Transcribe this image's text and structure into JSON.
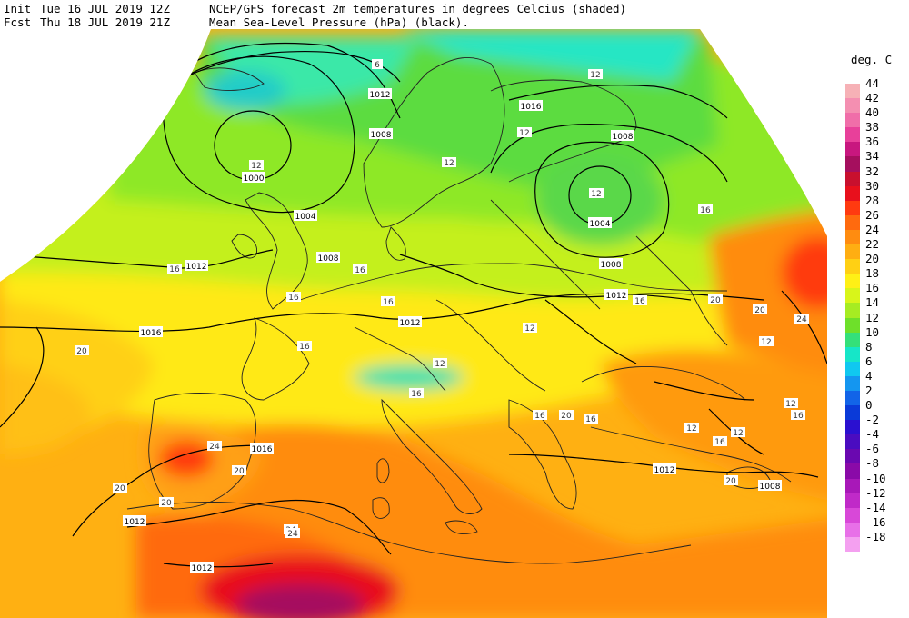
{
  "header": {
    "init_label": "Init",
    "init_time": "Tue 16 JUL 2019 12Z",
    "fcst_label": "Fcst",
    "fcst_time": "Thu 18 JUL 2019 21Z",
    "title_line1": "NCEP/GFS forecast 2m temperatures in degrees Celcius (shaded)",
    "title_line2": "Mean Sea-Level Pressure (hPa) (black)."
  },
  "legend": {
    "title": "deg. C",
    "items": [
      {
        "label": "44",
        "color": "#f6b1b6"
      },
      {
        "label": "42",
        "color": "#f48fb1"
      },
      {
        "label": "40",
        "color": "#f06ea9"
      },
      {
        "label": "38",
        "color": "#e8409a"
      },
      {
        "label": "36",
        "color": "#c8177f"
      },
      {
        "label": "34",
        "color": "#a50f5e"
      },
      {
        "label": "32",
        "color": "#c8102e"
      },
      {
        "label": "30",
        "color": "#e8101c"
      },
      {
        "label": "28",
        "color": "#ff3a10"
      },
      {
        "label": "26",
        "color": "#ff6a0e"
      },
      {
        "label": "24",
        "color": "#ff8c10"
      },
      {
        "label": "22",
        "color": "#ffae12"
      },
      {
        "label": "20",
        "color": "#ffd014"
      },
      {
        "label": "18",
        "color": "#fff016"
      },
      {
        "label": "16",
        "color": "#d8f51a"
      },
      {
        "label": "14",
        "color": "#a6ec22"
      },
      {
        "label": "12",
        "color": "#6ee02a"
      },
      {
        "label": "10",
        "color": "#34e07a"
      },
      {
        "label": "8",
        "color": "#16e6c8"
      },
      {
        "label": "6",
        "color": "#10c8f0"
      },
      {
        "label": "4",
        "color": "#1496f0"
      },
      {
        "label": "2",
        "color": "#1264e8"
      },
      {
        "label": "0",
        "color": "#0a3ad8"
      },
      {
        "label": "-2",
        "color": "#2a10d0"
      },
      {
        "label": "-4",
        "color": "#4a0cc0"
      },
      {
        "label": "-6",
        "color": "#6a08b0"
      },
      {
        "label": "-8",
        "color": "#8a0aa8"
      },
      {
        "label": "-10",
        "color": "#a818b8"
      },
      {
        "label": "-12",
        "color": "#c02ac8"
      },
      {
        "label": "-14",
        "color": "#d848d8"
      },
      {
        "label": "-16",
        "color": "#e870e8"
      },
      {
        "label": "-18",
        "color": "#f4a0f0"
      }
    ]
  },
  "isobars": [
    {
      "label": "1012"
    },
    {
      "label": "1008"
    },
    {
      "label": "1000"
    },
    {
      "label": "1004"
    },
    {
      "label": "1008"
    },
    {
      "label": "1012"
    },
    {
      "label": "1016"
    },
    {
      "label": "1012"
    },
    {
      "label": "1016"
    },
    {
      "label": "1012"
    },
    {
      "label": "1016"
    },
    {
      "label": "1008"
    },
    {
      "label": "1004"
    },
    {
      "label": "1008"
    },
    {
      "label": "1012"
    },
    {
      "label": "1012"
    },
    {
      "label": "1012"
    },
    {
      "label": "1008"
    }
  ],
  "temp_labels": [
    {
      "label": "6"
    },
    {
      "label": "12"
    },
    {
      "label": "12"
    },
    {
      "label": "16"
    },
    {
      "label": "16"
    },
    {
      "label": "20"
    },
    {
      "label": "16"
    },
    {
      "label": "16"
    },
    {
      "label": "16"
    },
    {
      "label": "12"
    },
    {
      "label": "12"
    },
    {
      "label": "16"
    },
    {
      "label": "16"
    },
    {
      "label": "20"
    },
    {
      "label": "24"
    },
    {
      "label": "20"
    },
    {
      "label": "20"
    },
    {
      "label": "24"
    },
    {
      "label": "20"
    },
    {
      "label": "24"
    },
    {
      "label": "20"
    },
    {
      "label": "16"
    },
    {
      "label": "12"
    },
    {
      "label": "12"
    },
    {
      "label": "16"
    },
    {
      "label": "20"
    },
    {
      "label": "12"
    },
    {
      "label": "12"
    },
    {
      "label": "16"
    },
    {
      "label": "16"
    },
    {
      "label": "20"
    },
    {
      "label": "24"
    },
    {
      "label": "12"
    },
    {
      "label": "12"
    },
    {
      "label": "16"
    },
    {
      "label": "12"
    }
  ]
}
